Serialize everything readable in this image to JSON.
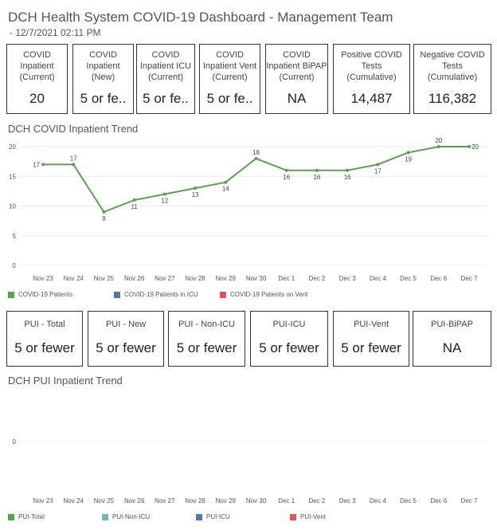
{
  "header": {
    "title": "DCH Health System COVID-19 Dashboard - Management Team",
    "subtitle": "- 12/7/2021 02:11 PM"
  },
  "kpis": [
    {
      "label": "COVID\nInpatient\n(Current)",
      "value": "20"
    },
    {
      "label": "COVID\nInpatient\n(New)",
      "value": "5 or fe.."
    },
    {
      "label": "COVID\nInpatient ICU\n(Current)",
      "value": "5 or fe.."
    },
    {
      "label": "COVID\nInpatient Vent\n(Current)",
      "value": "5 or fe.."
    },
    {
      "label": "COVID\nInpatient BiPAP\n(Current)",
      "value": "NA"
    },
    {
      "label": "Positive COVID\nTests\n(Cumulative)",
      "value": "14,487"
    },
    {
      "label": "Negative COVID\nTests\n(Cumulative)",
      "value": "116,382"
    }
  ],
  "covid_trend": {
    "title": "DCH COVID Inpatient Trend",
    "legend": [
      {
        "label": "COVID-19 Patients",
        "color": "#59a14f"
      },
      {
        "label": "COVID-19 Patients in ICU",
        "color": "#4e79a7"
      },
      {
        "label": "COVID-19 Patients on Vent",
        "color": "#e15759"
      }
    ]
  },
  "pui_cards": [
    {
      "label": "PUI - Total",
      "value": "5 or fewer"
    },
    {
      "label": "PUI - New",
      "value": "5 or fewer"
    },
    {
      "label": "PUI - Non-ICU",
      "value": "5 or fewer"
    },
    {
      "label": "PUI-ICU",
      "value": "5 or fewer"
    },
    {
      "label": "PUI-Vent",
      "value": "5 or fewer"
    },
    {
      "label": "PUI-BiPAP",
      "value": "NA"
    }
  ],
  "pui_trend": {
    "title": "DCH PUI Inpatient Trend",
    "legend": [
      {
        "label": "PUI-Total",
        "color": "#59a14f"
      },
      {
        "label": "PUI-Non-ICU",
        "color": "#76b7b2"
      },
      {
        "label": "PUI-ICU",
        "color": "#4e79a7"
      },
      {
        "label": "PUI-Vent",
        "color": "#e15759"
      }
    ]
  },
  "chart_data": [
    {
      "type": "line",
      "title": "DCH COVID Inpatient Trend",
      "categories": [
        "Nov 23",
        "Nov 24",
        "Nov 25",
        "Nov 26",
        "Nov 27",
        "Nov 28",
        "Nov 29",
        "Nov 30",
        "Dec 1",
        "Dec 2",
        "Dec 3",
        "Dec 4",
        "Dec 5",
        "Dec 6",
        "Dec 7"
      ],
      "series": [
        {
          "name": "COVID-19 Patients",
          "color": "#59a14f",
          "values": [
            17,
            17,
            9,
            11,
            12,
            13,
            14,
            18,
            16,
            16,
            16,
            17,
            19,
            20,
            20
          ]
        }
      ],
      "yticks": [
        0,
        5,
        10,
        15,
        20
      ],
      "ylim": [
        0,
        20
      ],
      "grid": true
    },
    {
      "type": "line",
      "title": "DCH PUI Inpatient Trend",
      "categories": [
        "Nov 23",
        "Nov 24",
        "Nov 25",
        "Nov 26",
        "Nov 27",
        "Nov 28",
        "Nov 29",
        "Nov 30",
        "Dec 1",
        "Dec 2",
        "Dec 3",
        "Dec 4",
        "Dec 5",
        "Dec 6",
        "Dec 7"
      ],
      "series": [],
      "yticks": [
        0
      ],
      "grid": true
    }
  ]
}
